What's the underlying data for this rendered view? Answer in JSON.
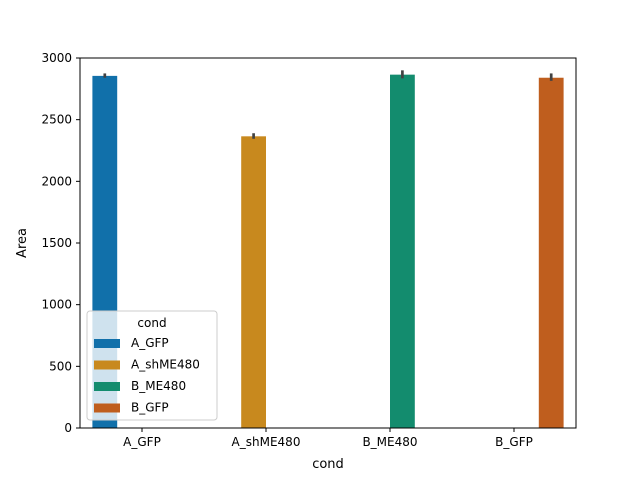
{
  "chart_data": {
    "type": "bar",
    "categories": [
      "A_GFP",
      "A_shME480",
      "B_ME480",
      "B_GFP"
    ],
    "values": [
      2855,
      2365,
      2865,
      2840
    ],
    "error_low": [
      2840,
      2345,
      2835,
      2815
    ],
    "error_high": [
      2875,
      2390,
      2900,
      2875
    ],
    "colors": [
      "#1170aa",
      "#c8891e",
      "#138c6e",
      "#bf5e1e"
    ],
    "ylim": [
      0,
      3000
    ],
    "yticks": [
      0,
      500,
      1000,
      1500,
      2000,
      2500,
      3000
    ],
    "xlabel": "cond",
    "ylabel": "Area",
    "legend": {
      "title": "cond",
      "placement": "lower-left",
      "entries": [
        "A_GFP",
        "A_shME480",
        "B_ME480",
        "B_GFP"
      ]
    },
    "grid": false
  }
}
